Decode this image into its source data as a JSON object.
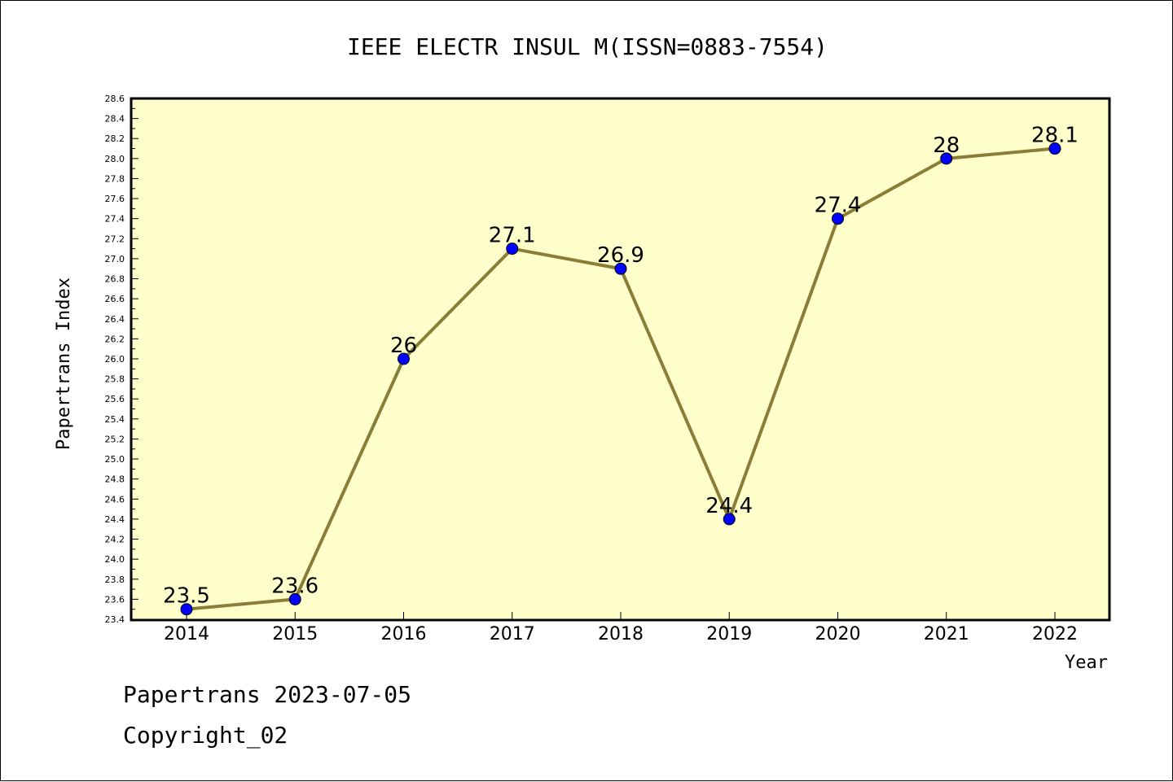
{
  "chart_data": {
    "type": "line",
    "title": "IEEE ELECTR INSUL M(ISSN=0883-7554)",
    "xlabel": "Year",
    "ylabel": "Papertrans Index",
    "categories": [
      "2014",
      "2015",
      "2016",
      "2017",
      "2018",
      "2019",
      "2020",
      "2021",
      "2022"
    ],
    "series": [
      {
        "values": [
          23.5,
          23.6,
          26.0,
          27.1,
          26.9,
          24.4,
          27.4,
          28.0,
          28.1
        ],
        "point_labels": [
          "23.5",
          "23.6",
          "26",
          "27.1",
          "26.9",
          "24.4",
          "27.4",
          "28",
          "28.1"
        ]
      }
    ],
    "ylim": [
      23.4,
      28.6
    ],
    "yticks": [
      "23.4",
      "23.6",
      "23.8",
      "24.0",
      "24.2",
      "24.4",
      "24.6",
      "24.8",
      "25.0",
      "25.2",
      "25.4",
      "25.6",
      "25.8",
      "26.0",
      "26.2",
      "26.4",
      "26.6",
      "26.8",
      "27.0",
      "27.2",
      "27.4",
      "27.6",
      "27.8",
      "28.0",
      "28.2",
      "28.4",
      "28.6"
    ],
    "grid": false,
    "legend": "none",
    "colors": {
      "plot_background": "#ffffcc",
      "line": "#8b7d35",
      "marker": "#0000ff",
      "axis": "#000000"
    }
  },
  "footer": {
    "date_line": "Papertrans 2023-07-05",
    "copyright_line": "Copyright_02"
  }
}
